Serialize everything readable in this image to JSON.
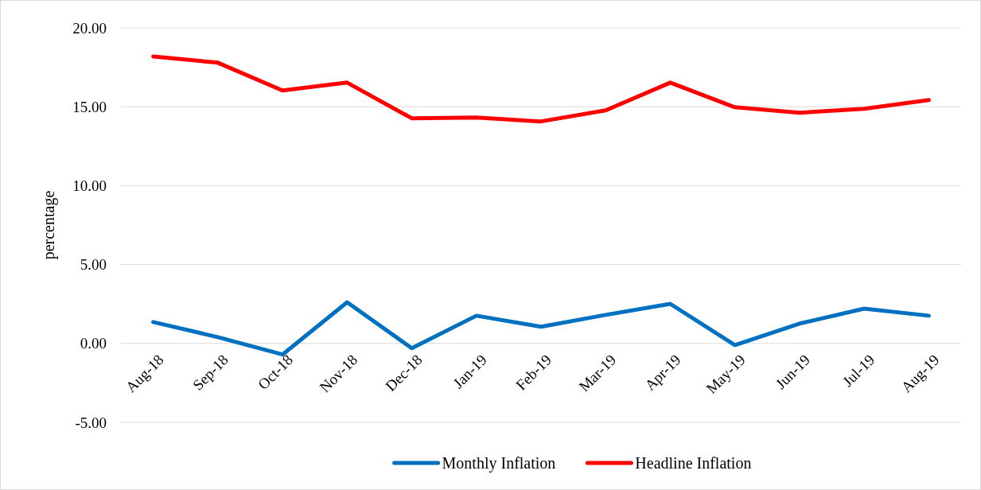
{
  "chart_data": {
    "type": "line",
    "ylabel": "percentage",
    "categories": [
      "Aug-18",
      "Sep-18",
      "Oct-18",
      "Nov-18",
      "Dec-18",
      "Jan-19",
      "Feb-19",
      "Mar-19",
      "Apr-19",
      "May-19",
      "Jun-19",
      "Jul-19",
      "Aug-19"
    ],
    "series": [
      {
        "name": "Monthly Inflation",
        "color": "#0070c0",
        "values": [
          1.36,
          0.4,
          -0.7,
          2.61,
          -0.3,
          1.76,
          1.06,
          1.81,
          2.51,
          -0.1,
          1.26,
          2.21,
          1.76
        ]
      },
      {
        "name": "Headline Inflation",
        "color": "#ff0000",
        "values": [
          18.19,
          17.79,
          16.03,
          16.53,
          14.27,
          14.32,
          14.07,
          14.77,
          16.53,
          14.97,
          14.62,
          14.87,
          15.43
        ]
      }
    ],
    "ylim": [
      -5,
      20
    ],
    "yticks": [
      {
        "value": -5,
        "label": "-5.00"
      },
      {
        "value": 0,
        "label": "0.00"
      },
      {
        "value": 5,
        "label": "5.00"
      },
      {
        "value": 10,
        "label": "10.00"
      },
      {
        "value": 15,
        "label": "15.00"
      },
      {
        "value": 20,
        "label": "20.00"
      }
    ],
    "grid": "y",
    "legend": "bottom",
    "marker": "none",
    "line_style": "solid"
  }
}
